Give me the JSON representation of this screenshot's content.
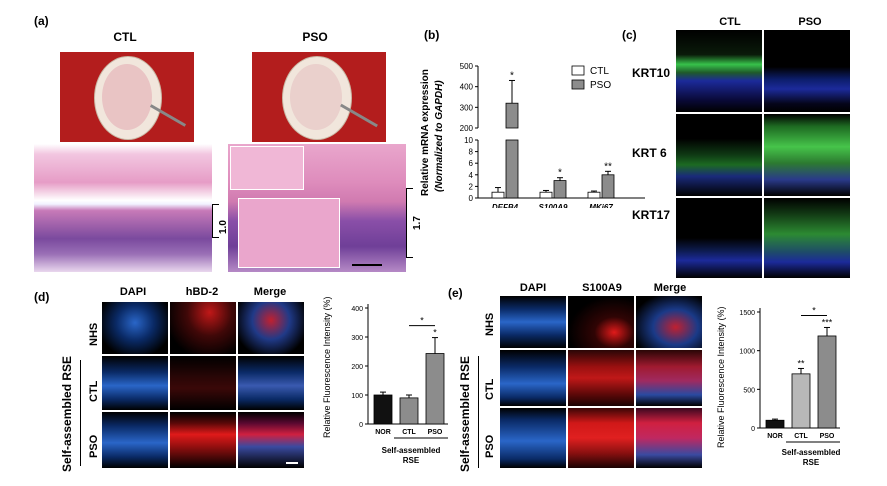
{
  "panels": {
    "a": {
      "label": "(a)",
      "ctl": "CTL",
      "pso": "PSO",
      "scale_ctl": "1.0",
      "scale_pso": "1.7"
    },
    "b": {
      "label": "(b)",
      "legend": [
        "CTL",
        "PSO"
      ],
      "ylabel_line1": "Relative mRNA expression",
      "ylabel_line2": "(Normalized to GAPDH)"
    },
    "c": {
      "label": "(c)",
      "cols": [
        "CTL",
        "PSO"
      ],
      "rows": [
        "KRT10",
        "KRT 6",
        "KRT17"
      ]
    },
    "d": {
      "label": "(d)",
      "cols": [
        "DAPI",
        "hBD-2",
        "Merge"
      ],
      "rows": [
        "NHS",
        "CTL",
        "PSO"
      ],
      "group": "Self-assembled RSE",
      "ylabel": "Relative Fluorescence Intensity (%)",
      "group_line1": "Self-assembled",
      "group_line2": "RSE"
    },
    "e": {
      "label": "(e)",
      "cols": [
        "DAPI",
        "S100A9",
        "Merge"
      ],
      "rows": [
        "NHS",
        "CTL",
        "PSO"
      ],
      "group": "Self-assembled RSE",
      "ylabel": "Relative Fluorescence Intensity (%)",
      "group_line1": "Self-assembled",
      "group_line2": "RSE"
    }
  },
  "colors": {
    "ctl_bar": "#ffffff",
    "pso_bar": "#8c8c8c",
    "nor_bar": "#111111",
    "d_ctl_bar": "#8c8c8c",
    "d_pso_bar": "#8c8c8c",
    "e_ctl_bar": "#b8b8b8",
    "e_pso_bar": "#8c8c8c"
  },
  "chart_data": [
    {
      "panel": "b",
      "type": "bar",
      "categories": [
        "DEFB4",
        "S100A9",
        "MKi67"
      ],
      "series": [
        {
          "name": "CTL",
          "values": [
            1.0,
            1.0,
            1.0
          ],
          "errors": [
            0.8,
            0.3,
            0.2
          ]
        },
        {
          "name": "PSO",
          "values": [
            320,
            3.0,
            4.0
          ],
          "errors": [
            110,
            0.5,
            0.6
          ]
        }
      ],
      "significance": [
        "*",
        "*",
        "**"
      ],
      "yticks": [
        "0",
        "2",
        "4",
        "6",
        "8",
        "10",
        "200",
        "300",
        "400",
        "500"
      ],
      "ylim": [
        0,
        500
      ],
      "ybreak": [
        10,
        200
      ]
    },
    {
      "panel": "d",
      "type": "bar",
      "categories": [
        "NOR",
        "CTL",
        "PSO"
      ],
      "values": [
        100,
        90,
        243
      ],
      "errors": [
        10,
        10,
        55
      ],
      "significance": [
        "",
        "",
        "*"
      ],
      "bracket": "*",
      "yticks": [
        "0",
        "100",
        "200",
        "300",
        "400"
      ],
      "ylim": [
        0,
        400
      ]
    },
    {
      "panel": "e",
      "type": "bar",
      "categories": [
        "NOR",
        "CTL",
        "PSO"
      ],
      "values": [
        100,
        700,
        1190
      ],
      "errors": [
        15,
        70,
        110
      ],
      "significance": [
        "",
        "**",
        "***"
      ],
      "bracket": "*",
      "yticks": [
        "0",
        "500",
        "1000",
        "1500"
      ],
      "ylim": [
        0,
        1500
      ]
    }
  ]
}
